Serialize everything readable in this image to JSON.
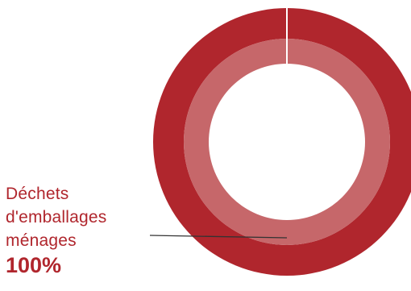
{
  "chart_data": {
    "type": "pie",
    "series": [
      {
        "values": [
          100
        ]
      }
    ],
    "categories": [
      "Déchets d'emballages ménages"
    ],
    "slices": [
      {
        "label_lines": [
          "Déchets",
          "d'emballages",
          "ménages"
        ],
        "value": 100,
        "value_label": "100%"
      }
    ]
  },
  "colors": {
    "outer_ring": "#b0262d",
    "inner_ring": "#c6676a",
    "separator": "#ffffff",
    "label_text": "#b0262d",
    "leader_line": "#333333"
  }
}
